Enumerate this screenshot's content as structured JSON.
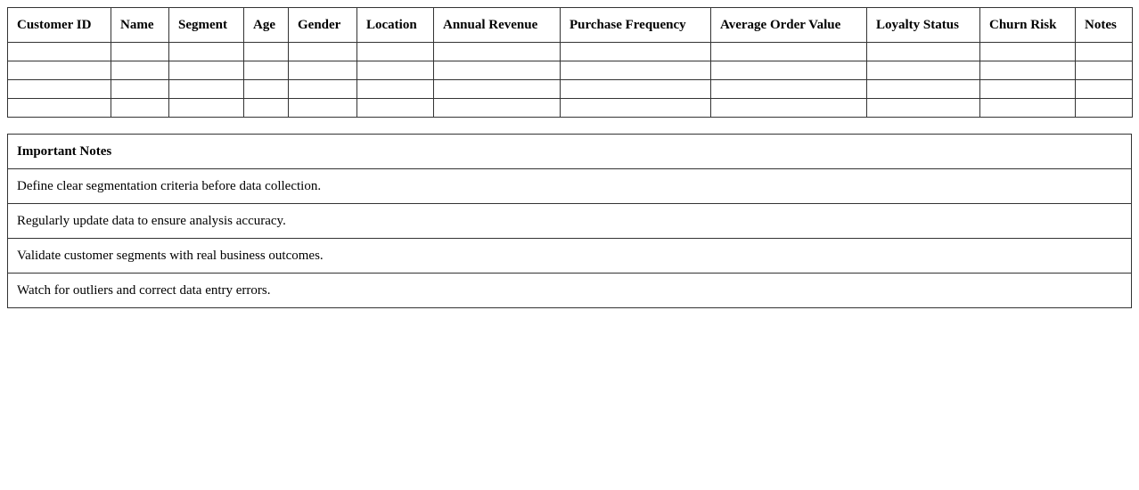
{
  "table": {
    "headers": [
      "Customer ID",
      "Name",
      "Segment",
      "Age",
      "Gender",
      "Location",
      "Annual Revenue",
      "Purchase Frequency",
      "Average Order Value",
      "Loyalty Status",
      "Churn Risk",
      "Notes"
    ],
    "row_count": 4
  },
  "notes": {
    "title": "Important Notes",
    "items": [
      "Define clear segmentation criteria before data collection.",
      "Regularly update data to ensure analysis accuracy.",
      "Validate customer segments with real business outcomes.",
      "Watch for outliers and correct data entry errors."
    ]
  }
}
